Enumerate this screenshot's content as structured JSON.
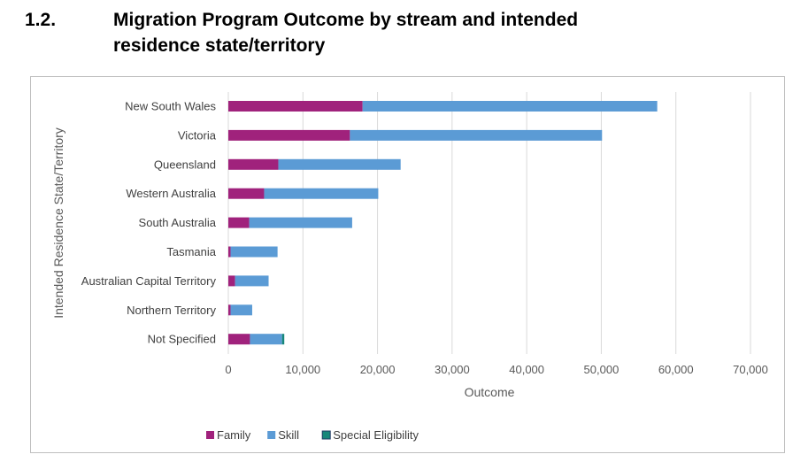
{
  "heading": {
    "number": "1.2.",
    "title": "Migration Program Outcome by stream and intended residence state/territory"
  },
  "chart_data": {
    "type": "bar",
    "orientation": "horizontal",
    "stacked": true,
    "title": "",
    "xlabel": "Outcome",
    "ylabel": "Intended Residence State/Territory",
    "categories": [
      "New South Wales",
      "Victoria",
      "Queensland",
      "Western Australia",
      "South Australia",
      "Tasmania",
      "Australian Capital Territory",
      "Northern Territory",
      "Not Specified"
    ],
    "series": [
      {
        "name": "Family",
        "color": "#a0227c",
        "values": [
          18000,
          16300,
          6700,
          4800,
          2800,
          300,
          900,
          300,
          2900
        ]
      },
      {
        "name": "Skill",
        "color": "#5b9bd5",
        "values": [
          39500,
          33800,
          16400,
          15300,
          13800,
          6300,
          4500,
          2900,
          4300
        ]
      },
      {
        "name": "Special Eligibility",
        "color": "#17877a",
        "values": [
          0,
          0,
          0,
          0,
          0,
          0,
          0,
          0,
          300
        ]
      }
    ],
    "xlim": [
      0,
      70000
    ],
    "xticks": [
      0,
      10000,
      20000,
      30000,
      40000,
      50000,
      60000,
      70000
    ],
    "xtick_labels": [
      "0",
      "10,000",
      "20,000",
      "30,000",
      "40,000",
      "50,000",
      "60,000",
      "70,000"
    ],
    "grid": true,
    "legend_position": "bottom-left"
  }
}
